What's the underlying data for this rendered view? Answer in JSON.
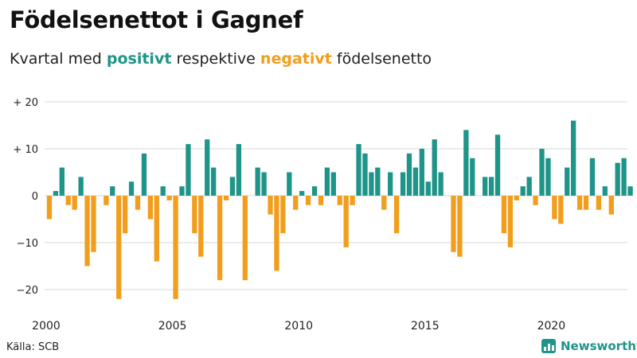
{
  "title": "Födelsenettot i Gagnef",
  "subtitle": {
    "prefix": "Kvartal med",
    "positive": "positivt",
    "middle": "respektive",
    "negative": "negativt",
    "suffix": "födelsenetto"
  },
  "source": "Källa: SCB",
  "brand": {
    "name": "Newsworthy",
    "icon": "bar-chart-icon"
  },
  "colors": {
    "positive": "#1f9488",
    "negative": "#f29e1d",
    "grid": "#d9d9d9"
  },
  "chart_data": {
    "type": "bar",
    "x_start": 2000,
    "periods_per_year": 4,
    "ylim": [
      -24,
      22
    ],
    "y_ticks": [
      {
        "value": 20,
        "label": "+ 20"
      },
      {
        "value": 10,
        "label": "+ 10"
      },
      {
        "value": 0,
        "label": "0"
      },
      {
        "value": -10,
        "label": "−10"
      },
      {
        "value": -20,
        "label": "−20"
      }
    ],
    "x_ticks": [
      {
        "value": 2000,
        "label": "2000"
      },
      {
        "value": 2005,
        "label": "2005"
      },
      {
        "value": 2010,
        "label": "2010"
      },
      {
        "value": 2015,
        "label": "2015"
      },
      {
        "value": 2020,
        "label": "2020"
      }
    ],
    "values": [
      -5,
      1,
      6,
      -2,
      -3,
      4,
      -15,
      -12,
      0,
      -2,
      2,
      -22,
      -8,
      3,
      -3,
      9,
      -5,
      -14,
      2,
      -1,
      -22,
      2,
      11,
      -8,
      -13,
      12,
      6,
      -18,
      -1,
      4,
      11,
      -18,
      0,
      6,
      5,
      -4,
      -16,
      -8,
      5,
      -3,
      1,
      -2,
      2,
      -2,
      6,
      5,
      -2,
      -11,
      -2,
      11,
      9,
      5,
      6,
      -3,
      5,
      -8,
      5,
      9,
      6,
      10,
      3,
      12,
      5,
      0,
      -12,
      -13,
      14,
      8,
      0,
      4,
      4,
      13,
      -8,
      -11,
      -1,
      2,
      4,
      -2,
      10,
      8,
      -5,
      -6,
      6,
      16,
      -3,
      -3,
      8,
      -3,
      2,
      -4,
      7,
      8,
      2
    ]
  }
}
